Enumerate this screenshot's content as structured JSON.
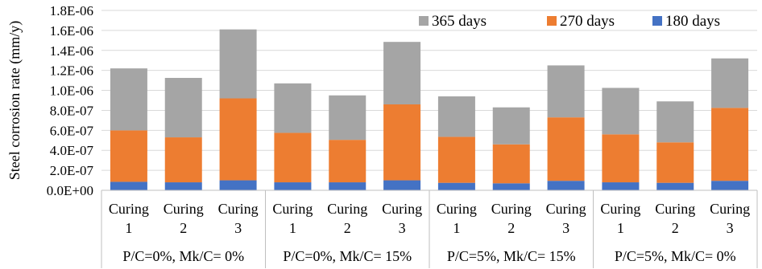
{
  "chart_data": {
    "type": "bar",
    "stacked": true,
    "title": "",
    "xlabel": "",
    "ylabel": "Steel corrosion rate (mm/y)",
    "ylim": [
      0,
      1.8e-06
    ],
    "yticks": [
      "0.0E+00",
      "2.0E-07",
      "4.0E-07",
      "6.0E-07",
      "8.0E-07",
      "1.0E-06",
      "1.2E-06",
      "1.4E-06",
      "1.6E-06",
      "1.8E-06"
    ],
    "grid": true,
    "legend_position": "top-right",
    "groups": [
      {
        "label": "P/C=0%, Mk/C= 0%",
        "categories": [
          {
            "line1": "Curing",
            "line2": "1"
          },
          {
            "line1": "Curing",
            "line2": "2"
          },
          {
            "line1": "Curing",
            "line2": "3"
          }
        ]
      },
      {
        "label": "P/C=0%, Mk/C= 15%",
        "categories": [
          {
            "line1": "Curing",
            "line2": "1"
          },
          {
            "line1": "Curing",
            "line2": "2"
          },
          {
            "line1": "Curing",
            "line2": "3"
          }
        ]
      },
      {
        "label": "P/C=5%, Mk/C= 15%",
        "categories": [
          {
            "line1": "Curing",
            "line2": "1"
          },
          {
            "line1": "Curing",
            "line2": "2"
          },
          {
            "line1": "Curing",
            "line2": "3"
          }
        ]
      },
      {
        "label": "P/C=5%, Mk/C= 0%",
        "categories": [
          {
            "line1": "Curing",
            "line2": "1"
          },
          {
            "line1": "Curing",
            "line2": "2"
          },
          {
            "line1": "Curing",
            "line2": "3"
          }
        ]
      }
    ],
    "series": [
      {
        "name": "180 days",
        "color": "#4472c4",
        "values": [
          8.5e-08,
          8e-08,
          1e-07,
          8e-08,
          8e-08,
          1e-07,
          7.5e-08,
          7e-08,
          9.5e-08,
          8e-08,
          7.5e-08,
          9.5e-08
        ]
      },
      {
        "name": "270 days",
        "color": "#ed7d31",
        "values": [
          5.15e-07,
          4.5e-07,
          8.2e-07,
          4.95e-07,
          4.25e-07,
          7.6e-07,
          4.6e-07,
          3.9e-07,
          6.35e-07,
          4.8e-07,
          4.05e-07,
          7.3e-07
        ]
      },
      {
        "name": "365 days",
        "color": "#a5a5a5",
        "values": [
          6.2e-07,
          5.95e-07,
          6.9e-07,
          4.95e-07,
          4.45e-07,
          6.25e-07,
          4.05e-07,
          3.7e-07,
          5.2e-07,
          4.65e-07,
          4.1e-07,
          4.95e-07
        ]
      }
    ],
    "legend_order": [
      "365 days",
      "270 days",
      "180 days"
    ]
  }
}
